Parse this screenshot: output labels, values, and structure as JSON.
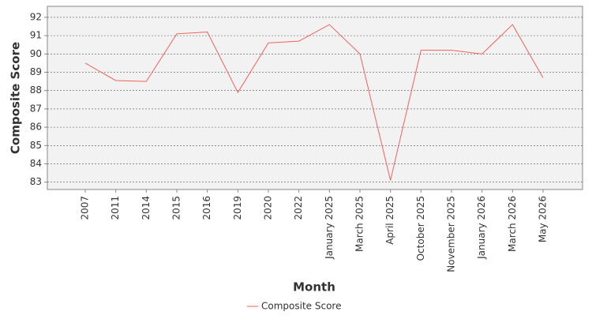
{
  "chart_data": {
    "type": "line",
    "x_label": "Month",
    "y_label": "Composite Score",
    "categories": [
      "2007",
      "2011",
      "2014",
      "2015",
      "2016",
      "2019",
      "2020",
      "2022",
      "January 2025",
      "March 2025",
      "April 2025",
      "October 2025",
      "November 2025",
      "January 2026",
      "March 2026",
      "May 2026"
    ],
    "series": [
      {
        "name": "Composite Score",
        "color": "#f0625c",
        "values": [
          89.5,
          88.55,
          88.5,
          91.1,
          91.2,
          87.9,
          90.6,
          90.7,
          91.6,
          90.0,
          83.1,
          90.2,
          90.2,
          90.0,
          91.6,
          88.7
        ]
      }
    ],
    "ylim": [
      82.6,
      92.6
    ],
    "yticks": [
      83,
      84,
      85,
      86,
      87,
      88,
      89,
      90,
      91,
      92
    ],
    "grid": true,
    "legend": "bottom"
  }
}
